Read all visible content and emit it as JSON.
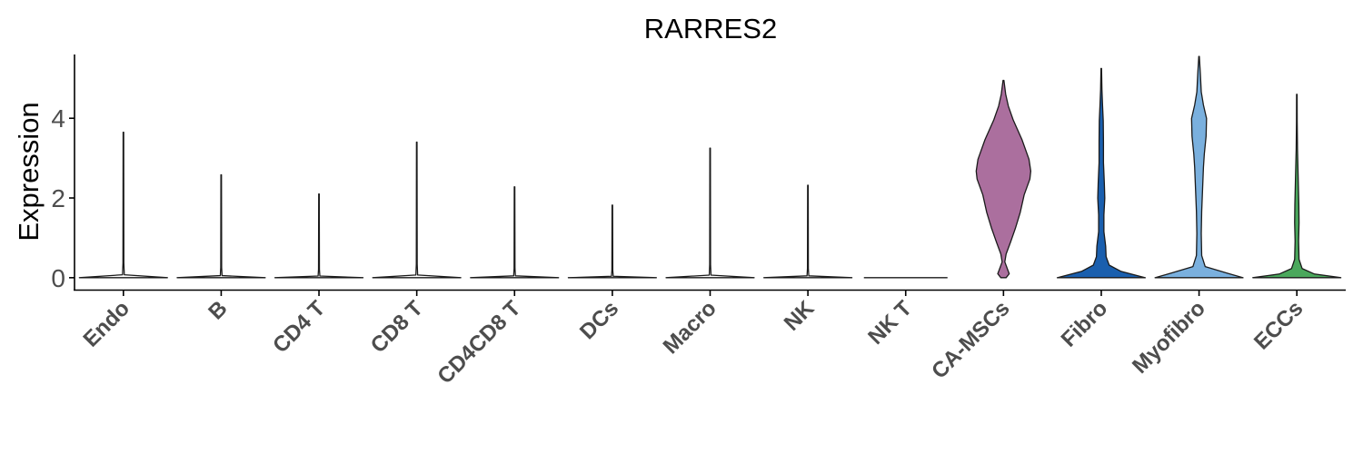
{
  "chart_data": {
    "type": "violin",
    "title": "RARRES2",
    "ylabel": "Expression",
    "xlabel": "",
    "ylim": [
      -0.3,
      5.6
    ],
    "yticks": [
      0,
      2,
      4
    ],
    "legend": "none",
    "grid": false,
    "categories": [
      "Endo",
      "B",
      "CD4 T",
      "CD8 T",
      "CD4CD8 T",
      "DCs",
      "Macro",
      "NK",
      "NK T",
      "CA-MSCs",
      "Fibro",
      "Myofibro",
      "ECCs"
    ],
    "colors": [
      "#ffffff",
      "#ffffff",
      "#ffffff",
      "#ffffff",
      "#ffffff",
      "#ffffff",
      "#ffffff",
      "#ffffff",
      "#ffffff",
      "#ab6f9e",
      "#1a5fae",
      "#7ab0de",
      "#4aa85c"
    ],
    "max_values": [
      3.65,
      2.58,
      2.1,
      3.4,
      2.28,
      1.82,
      3.25,
      2.32,
      0.0,
      4.95,
      5.25,
      5.55,
      4.6
    ],
    "density_profiles": [
      [
        [
          0,
          1
        ],
        [
          0.02,
          0.02
        ],
        [
          0.1,
          0.01
        ],
        [
          1,
          0.004
        ]
      ],
      [
        [
          0,
          1
        ],
        [
          0.02,
          0.02
        ],
        [
          0.1,
          0.01
        ],
        [
          1,
          0.004
        ]
      ],
      [
        [
          0,
          1
        ],
        [
          0.02,
          0.02
        ],
        [
          0.1,
          0.01
        ],
        [
          1,
          0.004
        ]
      ],
      [
        [
          0,
          1
        ],
        [
          0.02,
          0.02
        ],
        [
          0.1,
          0.01
        ],
        [
          1,
          0.004
        ]
      ],
      [
        [
          0,
          1
        ],
        [
          0.02,
          0.02
        ],
        [
          0.1,
          0.01
        ],
        [
          1,
          0.004
        ]
      ],
      [
        [
          0,
          1
        ],
        [
          0.02,
          0.02
        ],
        [
          0.1,
          0.01
        ],
        [
          1,
          0.004
        ]
      ],
      [
        [
          0,
          1
        ],
        [
          0.02,
          0.02
        ],
        [
          0.1,
          0.01
        ],
        [
          1,
          0.004
        ]
      ],
      [
        [
          0,
          1
        ],
        [
          0.02,
          0.02
        ],
        [
          0.1,
          0.01
        ],
        [
          1,
          0.004
        ]
      ],
      [
        [
          0,
          1
        ]
      ],
      [
        [
          0,
          0.06
        ],
        [
          0.02,
          0.13
        ],
        [
          0.08,
          0.03
        ],
        [
          0.12,
          0.06
        ],
        [
          0.18,
          0.16
        ],
        [
          0.25,
          0.27
        ],
        [
          0.33,
          0.38
        ],
        [
          0.42,
          0.47
        ],
        [
          0.5,
          0.6
        ],
        [
          0.54,
          0.62
        ],
        [
          0.6,
          0.58
        ],
        [
          0.7,
          0.42
        ],
        [
          0.8,
          0.22
        ],
        [
          0.87,
          0.11
        ],
        [
          0.93,
          0.05
        ],
        [
          1,
          0.01
        ]
      ],
      [
        [
          0,
          1
        ],
        [
          0.03,
          0.45
        ],
        [
          0.06,
          0.18
        ],
        [
          0.1,
          0.11
        ],
        [
          0.15,
          0.1
        ],
        [
          0.22,
          0.06
        ],
        [
          0.3,
          0.06
        ],
        [
          0.38,
          0.08
        ],
        [
          0.45,
          0.07
        ],
        [
          0.55,
          0.05
        ],
        [
          0.65,
          0.05
        ],
        [
          0.75,
          0.045
        ],
        [
          0.82,
          0.03
        ],
        [
          0.9,
          0.015
        ],
        [
          1,
          0.005
        ]
      ],
      [
        [
          0,
          1
        ],
        [
          0.02,
          0.65
        ],
        [
          0.05,
          0.14
        ],
        [
          0.1,
          0.06
        ],
        [
          0.2,
          0.05
        ],
        [
          0.3,
          0.06
        ],
        [
          0.4,
          0.08
        ],
        [
          0.5,
          0.1
        ],
        [
          0.56,
          0.12
        ],
        [
          0.64,
          0.16
        ],
        [
          0.72,
          0.17
        ],
        [
          0.78,
          0.1
        ],
        [
          0.84,
          0.05
        ],
        [
          0.92,
          0.03
        ],
        [
          1,
          0.005
        ]
      ],
      [
        [
          0,
          1
        ],
        [
          0.02,
          0.4
        ],
        [
          0.05,
          0.12
        ],
        [
          0.1,
          0.05
        ],
        [
          0.2,
          0.04
        ],
        [
          0.3,
          0.05
        ],
        [
          0.4,
          0.045
        ],
        [
          0.5,
          0.035
        ],
        [
          0.6,
          0.025
        ],
        [
          0.7,
          0.015
        ],
        [
          0.85,
          0.008
        ],
        [
          1,
          0.003
        ]
      ]
    ]
  }
}
